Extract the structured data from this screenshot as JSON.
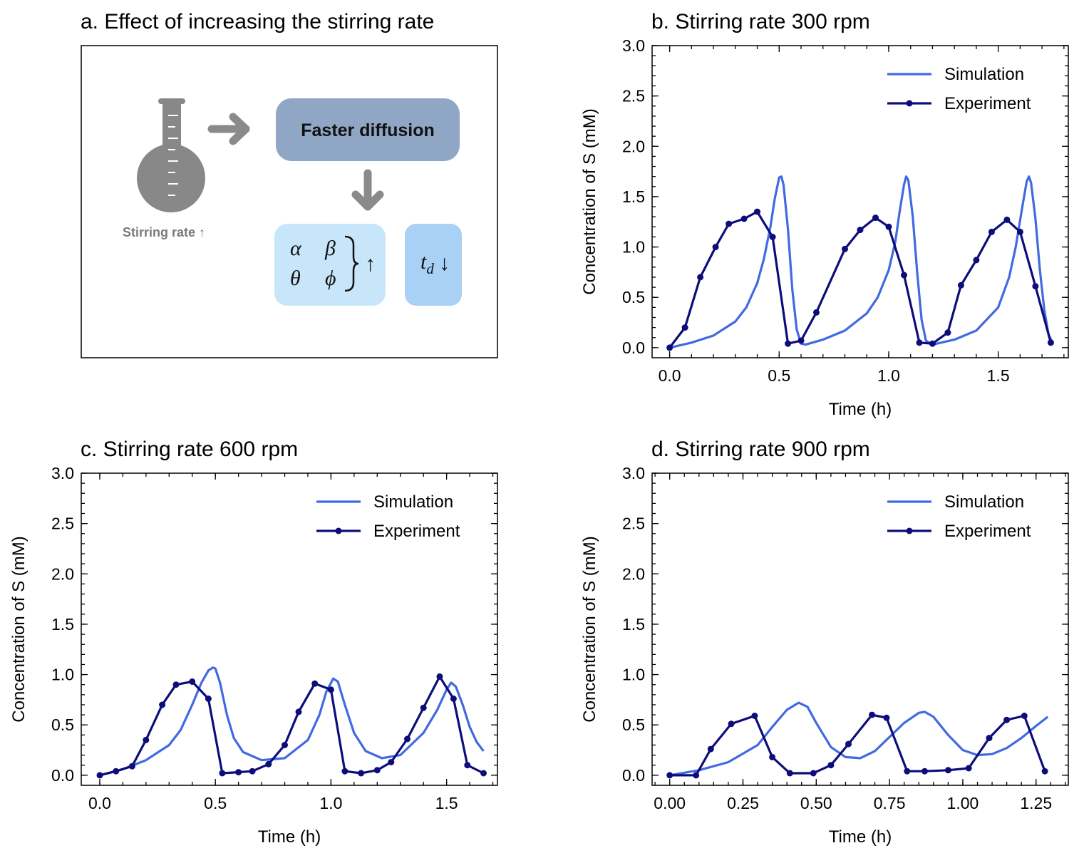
{
  "colors": {
    "simulation": "#4169e1",
    "experiment": "#0d0d7a",
    "flask": "#888888",
    "flow_box": "#8fa7c4",
    "param_box": "#c8e6fa",
    "td_box": "#a9d0f5",
    "arrow": "#8a8a8a"
  },
  "panel_a": {
    "title": "a. Effect of increasing the stirring rate",
    "flask_label": "Stirring rate ↑",
    "flow_box_label": "Faster diffusion",
    "params": [
      "α",
      "β",
      "θ",
      "ϕ"
    ],
    "params_arrow": "↑",
    "td_symbol": "t",
    "td_subscript": "d",
    "td_arrow": "↓",
    "icons": [
      "flask-icon",
      "right-arrow-icon",
      "down-arrow-icon",
      "brace-icon"
    ]
  },
  "chart_data": [
    {
      "id": "b",
      "type": "line",
      "title": "b. Stirring rate 300 rpm",
      "xlabel": "Time (h)",
      "ylabel": "Concentration of S (mM)",
      "xlim": [
        -0.08,
        1.82
      ],
      "ylim": [
        -0.1,
        3.0
      ],
      "xticks": [
        0,
        0.5,
        1.0,
        1.5
      ],
      "xtick_labels": [
        "0.0",
        "0.5",
        "1.0",
        "1.5"
      ],
      "yticks": [
        0,
        0.5,
        1.0,
        1.5,
        2.0,
        2.5,
        3.0
      ],
      "ytick_labels": [
        "0.0",
        "0.5",
        "1.0",
        "1.5",
        "2.0",
        "2.5",
        "3.0"
      ],
      "legend": "upper right",
      "series": [
        {
          "name": "Simulation",
          "style": "line",
          "x": [
            0,
            0.1,
            0.2,
            0.3,
            0.35,
            0.4,
            0.43,
            0.46,
            0.48,
            0.5,
            0.51,
            0.52,
            0.54,
            0.56,
            0.58,
            0.6,
            0.62,
            0.7,
            0.8,
            0.9,
            0.95,
            1.0,
            1.03,
            1.05,
            1.07,
            1.08,
            1.09,
            1.11,
            1.13,
            1.15,
            1.17,
            1.2,
            1.3,
            1.4,
            1.5,
            1.55,
            1.58,
            1.61,
            1.63,
            1.64,
            1.65,
            1.67,
            1.69,
            1.71,
            1.73,
            1.75
          ],
          "y": [
            0,
            0.05,
            0.12,
            0.26,
            0.4,
            0.64,
            0.88,
            1.2,
            1.48,
            1.69,
            1.7,
            1.62,
            1.18,
            0.58,
            0.18,
            0.04,
            0.03,
            0.08,
            0.17,
            0.34,
            0.5,
            0.77,
            1.05,
            1.35,
            1.62,
            1.7,
            1.66,
            1.3,
            0.75,
            0.28,
            0.07,
            0.03,
            0.08,
            0.17,
            0.4,
            0.7,
            1.0,
            1.4,
            1.65,
            1.7,
            1.64,
            1.28,
            0.78,
            0.38,
            0.13,
            0.04
          ]
        },
        {
          "name": "Experiment",
          "style": "line-marker",
          "x": [
            0,
            0.07,
            0.14,
            0.21,
            0.27,
            0.34,
            0.4,
            0.47,
            0.54,
            0.6,
            0.67,
            0.8,
            0.87,
            0.94,
            1.0,
            1.07,
            1.14,
            1.2,
            1.27,
            1.33,
            1.4,
            1.47,
            1.54,
            1.6,
            1.67,
            1.74
          ],
          "y": [
            0,
            0.2,
            0.7,
            1.0,
            1.23,
            1.28,
            1.35,
            1.1,
            0.04,
            0.07,
            0.35,
            0.98,
            1.17,
            1.29,
            1.2,
            0.72,
            0.05,
            0.04,
            0.15,
            0.62,
            0.87,
            1.15,
            1.27,
            1.15,
            0.61,
            0.05
          ]
        }
      ]
    },
    {
      "id": "c",
      "type": "line",
      "title": "c. Stirring rate 600 rpm",
      "xlabel": "Time (h)",
      "ylabel": "Concentration of S (mM)",
      "xlim": [
        -0.08,
        1.72
      ],
      "ylim": [
        -0.1,
        3.0
      ],
      "xticks": [
        0,
        0.5,
        1.0,
        1.5
      ],
      "xtick_labels": [
        "0.0",
        "0.5",
        "1.0",
        "1.5"
      ],
      "yticks": [
        0,
        0.5,
        1.0,
        1.5,
        2.0,
        2.5,
        3.0
      ],
      "ytick_labels": [
        "0.0",
        "0.5",
        "1.0",
        "1.5",
        "2.0",
        "2.5",
        "3.0"
      ],
      "legend": "upper right",
      "series": [
        {
          "name": "Simulation",
          "style": "line",
          "x": [
            0,
            0.1,
            0.2,
            0.3,
            0.35,
            0.4,
            0.44,
            0.47,
            0.49,
            0.5,
            0.52,
            0.55,
            0.58,
            0.62,
            0.7,
            0.8,
            0.9,
            0.95,
            0.98,
            1.01,
            1.03,
            1.06,
            1.1,
            1.15,
            1.22,
            1.3,
            1.4,
            1.46,
            1.5,
            1.52,
            1.54,
            1.57,
            1.6,
            1.63,
            1.66
          ],
          "y": [
            0,
            0.06,
            0.15,
            0.3,
            0.45,
            0.7,
            0.92,
            1.04,
            1.07,
            1.06,
            0.92,
            0.6,
            0.37,
            0.23,
            0.15,
            0.17,
            0.35,
            0.6,
            0.83,
            0.96,
            0.93,
            0.7,
            0.42,
            0.24,
            0.17,
            0.2,
            0.42,
            0.65,
            0.85,
            0.92,
            0.88,
            0.7,
            0.48,
            0.33,
            0.24
          ]
        },
        {
          "name": "Experiment",
          "style": "line-marker",
          "x": [
            0,
            0.07,
            0.14,
            0.2,
            0.27,
            0.33,
            0.4,
            0.47,
            0.53,
            0.6,
            0.66,
            0.73,
            0.8,
            0.86,
            0.93,
            1.0,
            1.06,
            1.13,
            1.2,
            1.26,
            1.33,
            1.4,
            1.47,
            1.53,
            1.59,
            1.66
          ],
          "y": [
            0,
            0.04,
            0.09,
            0.35,
            0.7,
            0.9,
            0.93,
            0.76,
            0.02,
            0.03,
            0.04,
            0.11,
            0.3,
            0.63,
            0.91,
            0.85,
            0.04,
            0.02,
            0.05,
            0.13,
            0.36,
            0.67,
            0.98,
            0.76,
            0.1,
            0.02
          ]
        }
      ]
    },
    {
      "id": "d",
      "type": "line",
      "title": "d. Stirring rate 900 rpm",
      "xlabel": "Time (h)",
      "ylabel": "Concentration of S (mM)",
      "xlim": [
        -0.06,
        1.36
      ],
      "ylim": [
        -0.1,
        3.0
      ],
      "xticks": [
        0,
        0.25,
        0.5,
        0.75,
        1.0,
        1.25
      ],
      "xtick_labels": [
        "0.00",
        "0.25",
        "0.50",
        "0.75",
        "1.00",
        "1.25"
      ],
      "yticks": [
        0,
        0.5,
        1.0,
        1.5,
        2.0,
        2.5,
        3.0
      ],
      "ytick_labels": [
        "0.0",
        "0.5",
        "1.0",
        "1.5",
        "2.0",
        "2.5",
        "3.0"
      ],
      "legend": "upper right",
      "series": [
        {
          "name": "Simulation",
          "style": "line",
          "x": [
            0,
            0.1,
            0.2,
            0.3,
            0.35,
            0.4,
            0.44,
            0.47,
            0.5,
            0.55,
            0.6,
            0.65,
            0.7,
            0.75,
            0.8,
            0.85,
            0.87,
            0.9,
            0.95,
            1.0,
            1.05,
            1.1,
            1.15,
            1.2,
            1.25,
            1.29
          ],
          "y": [
            0,
            0.05,
            0.13,
            0.3,
            0.48,
            0.65,
            0.72,
            0.68,
            0.52,
            0.28,
            0.18,
            0.17,
            0.24,
            0.38,
            0.52,
            0.62,
            0.63,
            0.58,
            0.4,
            0.25,
            0.2,
            0.21,
            0.27,
            0.37,
            0.49,
            0.58
          ]
        },
        {
          "name": "Experiment",
          "style": "line-marker",
          "x": [
            0,
            0.09,
            0.14,
            0.21,
            0.29,
            0.35,
            0.41,
            0.49,
            0.55,
            0.61,
            0.69,
            0.74,
            0.81,
            0.87,
            0.95,
            1.02,
            1.09,
            1.15,
            1.21,
            1.28
          ],
          "y": [
            0,
            0.0,
            0.26,
            0.51,
            0.59,
            0.18,
            0.02,
            0.02,
            0.1,
            0.31,
            0.6,
            0.57,
            0.04,
            0.04,
            0.05,
            0.07,
            0.37,
            0.55,
            0.59,
            0.04
          ]
        }
      ]
    }
  ]
}
